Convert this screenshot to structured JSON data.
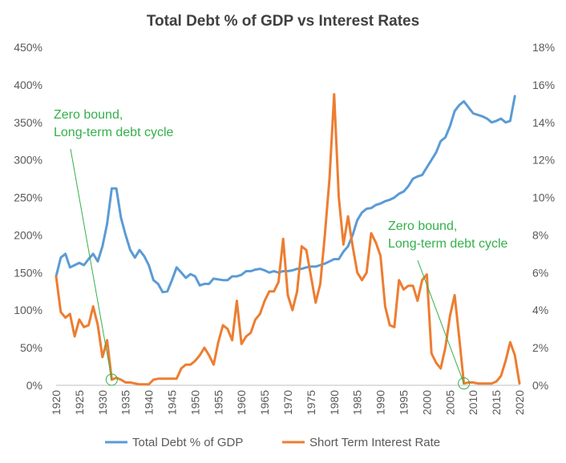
{
  "chart_data": {
    "type": "line",
    "title": "Total Debt % of GDP vs Interest Rates",
    "x_ticks": [
      1920,
      1925,
      1930,
      1935,
      1940,
      1945,
      1950,
      1955,
      1960,
      1965,
      1970,
      1975,
      1980,
      1985,
      1990,
      1995,
      2000,
      2005,
      2010,
      2015,
      2020
    ],
    "y_left": {
      "min": 0,
      "max": 450,
      "ticks": [
        "0%",
        "50%",
        "100%",
        "150%",
        "200%",
        "250%",
        "300%",
        "350%",
        "400%",
        "450%"
      ]
    },
    "y_right": {
      "min": 0,
      "max": 18,
      "ticks": [
        "0%",
        "2%",
        "4%",
        "6%",
        "8%",
        "10%",
        "12%",
        "14%",
        "16%",
        "18%"
      ]
    },
    "grid": false,
    "legend_position": "bottom",
    "series": [
      {
        "name": "Total Debt % of GDP",
        "axis": "left",
        "color": "#5B9BD5",
        "points": [
          [
            1920,
            145
          ],
          [
            1921,
            170
          ],
          [
            1922,
            175
          ],
          [
            1923,
            157
          ],
          [
            1924,
            160
          ],
          [
            1925,
            163
          ],
          [
            1926,
            160
          ],
          [
            1927,
            168
          ],
          [
            1928,
            175
          ],
          [
            1929,
            165
          ],
          [
            1930,
            185
          ],
          [
            1931,
            215
          ],
          [
            1932,
            262
          ],
          [
            1933,
            262
          ],
          [
            1934,
            223
          ],
          [
            1935,
            200
          ],
          [
            1936,
            180
          ],
          [
            1937,
            170
          ],
          [
            1938,
            180
          ],
          [
            1939,
            172
          ],
          [
            1940,
            160
          ],
          [
            1941,
            140
          ],
          [
            1942,
            135
          ],
          [
            1943,
            124
          ],
          [
            1944,
            125
          ],
          [
            1945,
            140
          ],
          [
            1946,
            157
          ],
          [
            1947,
            150
          ],
          [
            1948,
            143
          ],
          [
            1949,
            148
          ],
          [
            1950,
            145
          ],
          [
            1951,
            133
          ],
          [
            1952,
            135
          ],
          [
            1953,
            135
          ],
          [
            1954,
            142
          ],
          [
            1955,
            141
          ],
          [
            1956,
            140
          ],
          [
            1957,
            140
          ],
          [
            1958,
            145
          ],
          [
            1959,
            145
          ],
          [
            1960,
            147
          ],
          [
            1961,
            152
          ],
          [
            1962,
            152
          ],
          [
            1963,
            154
          ],
          [
            1964,
            155
          ],
          [
            1965,
            153
          ],
          [
            1966,
            150
          ],
          [
            1967,
            152
          ],
          [
            1968,
            150
          ],
          [
            1969,
            152
          ],
          [
            1970,
            152
          ],
          [
            1971,
            153
          ],
          [
            1972,
            155
          ],
          [
            1973,
            155
          ],
          [
            1974,
            157
          ],
          [
            1975,
            158
          ],
          [
            1976,
            158
          ],
          [
            1977,
            160
          ],
          [
            1978,
            162
          ],
          [
            1979,
            165
          ],
          [
            1980,
            168
          ],
          [
            1981,
            168
          ],
          [
            1982,
            178
          ],
          [
            1983,
            185
          ],
          [
            1984,
            200
          ],
          [
            1985,
            220
          ],
          [
            1986,
            230
          ],
          [
            1987,
            235
          ],
          [
            1988,
            236
          ],
          [
            1989,
            240
          ],
          [
            1990,
            242
          ],
          [
            1991,
            245
          ],
          [
            1992,
            247
          ],
          [
            1993,
            250
          ],
          [
            1994,
            255
          ],
          [
            1995,
            258
          ],
          [
            1996,
            265
          ],
          [
            1997,
            275
          ],
          [
            1998,
            278
          ],
          [
            1999,
            280
          ],
          [
            2000,
            290
          ],
          [
            2001,
            300
          ],
          [
            2002,
            310
          ],
          [
            2003,
            325
          ],
          [
            2004,
            330
          ],
          [
            2005,
            345
          ],
          [
            2006,
            365
          ],
          [
            2007,
            373
          ],
          [
            2008,
            378
          ],
          [
            2009,
            370
          ],
          [
            2010,
            362
          ],
          [
            2011,
            360
          ],
          [
            2012,
            358
          ],
          [
            2013,
            355
          ],
          [
            2014,
            350
          ],
          [
            2015,
            352
          ],
          [
            2016,
            355
          ],
          [
            2017,
            350
          ],
          [
            2018,
            352
          ],
          [
            2019,
            385
          ]
        ]
      },
      {
        "name": "Short Term Interest Rate",
        "axis": "right",
        "color": "#ED7D31",
        "points": [
          [
            1920,
            5.8
          ],
          [
            1921,
            3.9
          ],
          [
            1922,
            3.6
          ],
          [
            1923,
            3.8
          ],
          [
            1924,
            2.6
          ],
          [
            1925,
            3.5
          ],
          [
            1926,
            3.1
          ],
          [
            1927,
            3.2
          ],
          [
            1928,
            4.2
          ],
          [
            1929,
            3.2
          ],
          [
            1930,
            1.5
          ],
          [
            1931,
            2.4
          ],
          [
            1932,
            0.3
          ],
          [
            1933,
            0.4
          ],
          [
            1934,
            0.3
          ],
          [
            1935,
            0.15
          ],
          [
            1936,
            0.15
          ],
          [
            1937,
            0.1
          ],
          [
            1938,
            0.05
          ],
          [
            1939,
            0.05
          ],
          [
            1940,
            0.05
          ],
          [
            1941,
            0.3
          ],
          [
            1942,
            0.35
          ],
          [
            1943,
            0.35
          ],
          [
            1944,
            0.35
          ],
          [
            1945,
            0.35
          ],
          [
            1946,
            0.35
          ],
          [
            1947,
            0.9
          ],
          [
            1948,
            1.1
          ],
          [
            1949,
            1.1
          ],
          [
            1950,
            1.3
          ],
          [
            1951,
            1.6
          ],
          [
            1952,
            2.0
          ],
          [
            1953,
            1.6
          ],
          [
            1954,
            1.1
          ],
          [
            1955,
            2.3
          ],
          [
            1956,
            3.2
          ],
          [
            1957,
            3.0
          ],
          [
            1958,
            2.4
          ],
          [
            1959,
            4.5
          ],
          [
            1960,
            2.2
          ],
          [
            1961,
            2.6
          ],
          [
            1962,
            2.8
          ],
          [
            1963,
            3.5
          ],
          [
            1964,
            3.8
          ],
          [
            1965,
            4.5
          ],
          [
            1966,
            5.0
          ],
          [
            1967,
            5.0
          ],
          [
            1968,
            5.5
          ],
          [
            1969,
            7.8
          ],
          [
            1970,
            4.8
          ],
          [
            1971,
            4.0
          ],
          [
            1972,
            5.0
          ],
          [
            1973,
            7.4
          ],
          [
            1974,
            7.2
          ],
          [
            1975,
            5.8
          ],
          [
            1976,
            4.4
          ],
          [
            1977,
            5.4
          ],
          [
            1978,
            8.0
          ],
          [
            1979,
            11.0
          ],
          [
            1980,
            15.5
          ],
          [
            1981,
            10.0
          ],
          [
            1982,
            7.5
          ],
          [
            1983,
            9.0
          ],
          [
            1984,
            7.4
          ],
          [
            1985,
            6.0
          ],
          [
            1986,
            5.6
          ],
          [
            1987,
            6.0
          ],
          [
            1988,
            8.1
          ],
          [
            1989,
            7.6
          ],
          [
            1990,
            6.9
          ],
          [
            1991,
            4.2
          ],
          [
            1992,
            3.2
          ],
          [
            1993,
            3.1
          ],
          [
            1994,
            5.6
          ],
          [
            1995,
            5.1
          ],
          [
            1996,
            5.3
          ],
          [
            1997,
            5.3
          ],
          [
            1998,
            4.5
          ],
          [
            1999,
            5.6
          ],
          [
            2000,
            5.9
          ],
          [
            2001,
            1.7
          ],
          [
            2002,
            1.2
          ],
          [
            2003,
            0.9
          ],
          [
            2004,
            2.0
          ],
          [
            2005,
            3.7
          ],
          [
            2006,
            4.8
          ],
          [
            2007,
            2.5
          ],
          [
            2008,
            0.1
          ],
          [
            2009,
            0.15
          ],
          [
            2010,
            0.15
          ],
          [
            2011,
            0.1
          ],
          [
            2012,
            0.1
          ],
          [
            2013,
            0.1
          ],
          [
            2014,
            0.1
          ],
          [
            2015,
            0.2
          ],
          [
            2016,
            0.5
          ],
          [
            2017,
            1.3
          ],
          [
            2018,
            2.3
          ],
          [
            2019,
            1.6
          ],
          [
            2020,
            0.1
          ]
        ]
      }
    ],
    "annotations": [
      {
        "text_lines": [
          "Zero bound,",
          "Long-term debt cycle"
        ],
        "year": 1932,
        "value": 0.3,
        "axis": "right"
      },
      {
        "text_lines": [
          "Zero bound,",
          "Long-term debt cycle"
        ],
        "year": 2008,
        "value": 0.1,
        "axis": "right"
      }
    ]
  }
}
